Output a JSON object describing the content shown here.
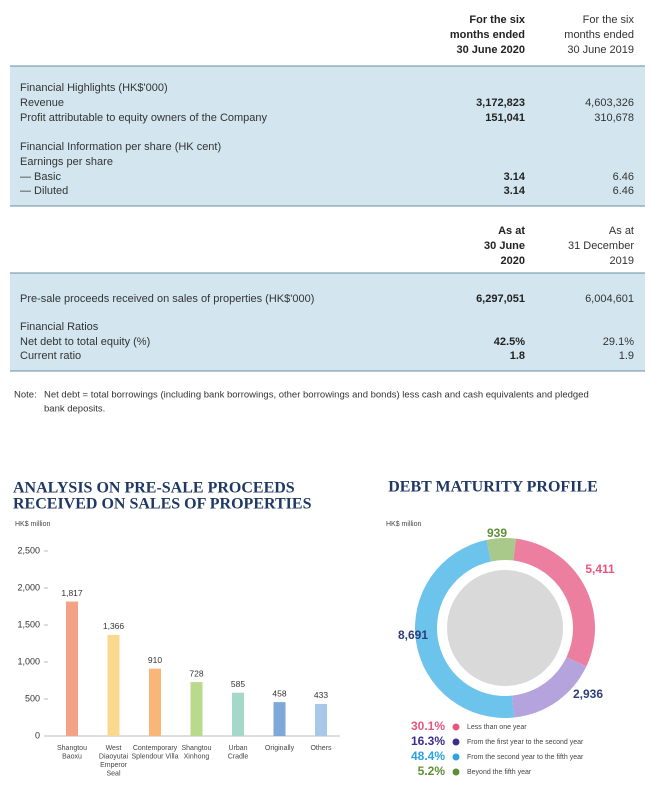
{
  "table": {
    "sections": [
      {
        "headers": [
          [
            "For the six",
            "months ended",
            "30 June 2020"
          ],
          [
            "For the six",
            "months ended",
            "30 June 2019"
          ]
        ],
        "rows": [
          [
            "Financial Highlights (HK$'000)"
          ],
          [
            "Revenue",
            "3,172,823",
            "4,603,326"
          ],
          [
            "Profit attributable to equity owners of the Company",
            "151,041",
            "310,678"
          ],
          [
            "Financial Information per share (HK cent)"
          ],
          [
            "Earnings per share"
          ],
          [
            "— Basic",
            "3.14",
            "6.46"
          ],
          [
            "— Diluted",
            "3.14",
            "6.46"
          ]
        ]
      },
      {
        "headers": [
          [
            "As at",
            "30 June",
            "2020"
          ],
          [
            "As at",
            "31 December",
            "2019"
          ]
        ],
        "rows": [
          [
            "Pre-sale proceeds received on sales of properties (HK$'000)",
            "6,297,051",
            "6,004,601"
          ],
          [
            "Financial Ratios"
          ],
          [
            "Net debt to total equity (%)",
            "42.5%",
            "29.1%"
          ],
          [
            "Current ratio",
            "1.8",
            "1.9"
          ]
        ]
      }
    ],
    "note": [
      "Note:",
      "Net debt = total borrowings (including bank borrowings, other borrowings and bonds) less cash and cash equivalents and pledged",
      "bank deposits."
    ]
  },
  "chart_data": [
    {
      "type": "bar",
      "title": [
        "ANALYSIS ON PRE-SALE PROCEEDS",
        "RECEIVED ON SALES OF PROPERTIES"
      ],
      "y_label": "HK$ million",
      "categories": [
        [
          "Shangtou",
          "Baoxu"
        ],
        [
          "West",
          "Diaoyutai",
          "Emperor",
          "Seal"
        ],
        [
          "Contemporary",
          "Splendour Villa"
        ],
        [
          "Shangtou",
          "Xinhong"
        ],
        [
          "Urban",
          "Cradle"
        ],
        [
          "Originally"
        ],
        [
          "Others"
        ]
      ],
      "values": [
        1817,
        1366,
        910,
        728,
        585,
        458,
        433
      ],
      "value_labels": [
        "1,817",
        "1,366",
        "910",
        "728",
        "585",
        "458",
        "433"
      ],
      "colors": [
        "#f4a286",
        "#f9d98e",
        "#f8b679",
        "#b9d98d",
        "#a6d8c9",
        "#7ea8d8",
        "#a9c7e9"
      ],
      "ylim": [
        0,
        2500
      ],
      "yticks": [
        0,
        500,
        {
          "value": 1000,
          "label": "1,000"
        },
        {
          "value": 1500,
          "label": "1,500"
        },
        {
          "value": 2000,
          "label": "2,000"
        },
        {
          "value": 2500,
          "label": "2,500"
        }
      ]
    },
    {
      "type": "donut",
      "title": "DEBT MATURITY PROFILE",
      "y_label": "HK$ million",
      "categories": [
        "Less than one year",
        "From the first year to the second year",
        "From the second year to the fifth year",
        "Beyond the fifth year"
      ],
      "values": [
        5411,
        2936,
        8691,
        939
      ],
      "value_labels": [
        "5,411",
        "2,936",
        "8,691",
        "939"
      ],
      "percentages": [
        30.1,
        16.3,
        48.4,
        5.2
      ],
      "percentage_labels": [
        "30.1%",
        "16.3%",
        "48.4%",
        "5.2%"
      ],
      "colors": [
        "#ec7fa0",
        "#b4a3dc",
        "#6cc3ec",
        "#a9c98a"
      ],
      "legend_colors": [
        "#e8557f",
        "#3d2f88",
        "#2aa3df",
        "#5f8f35"
      ]
    }
  ]
}
